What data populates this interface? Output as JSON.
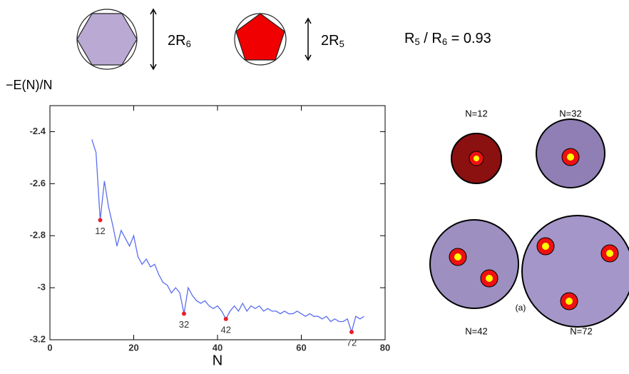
{
  "chart_data": {
    "type": "line",
    "y_label": "−E(N)/N",
    "x_label": "N",
    "xlim": [
      0,
      80
    ],
    "xticks": [
      0,
      20,
      40,
      60,
      80
    ],
    "ylim": [
      -3.2,
      -2.3
    ],
    "yticks": [
      -3.2,
      -3,
      -2.8,
      -2.6,
      -2.4
    ],
    "series": [
      {
        "color": "#5a6ef0",
        "x": [
          10,
          11,
          12,
          13,
          14,
          15,
          16,
          17,
          18,
          19,
          20,
          21,
          22,
          23,
          24,
          25,
          26,
          27,
          28,
          29,
          30,
          31,
          32,
          33,
          34,
          35,
          36,
          37,
          38,
          39,
          40,
          41,
          42,
          43,
          44,
          45,
          46,
          47,
          48,
          49,
          50,
          51,
          52,
          53,
          54,
          55,
          56,
          57,
          58,
          59,
          60,
          61,
          62,
          63,
          64,
          65,
          66,
          67,
          68,
          69,
          70,
          71,
          72,
          73,
          74,
          75
        ],
        "values": [
          -2.43,
          -2.48,
          -2.74,
          -2.59,
          -2.69,
          -2.76,
          -2.84,
          -2.78,
          -2.81,
          -2.84,
          -2.8,
          -2.88,
          -2.91,
          -2.89,
          -2.92,
          -2.91,
          -2.95,
          -2.98,
          -2.99,
          -3.02,
          -3.0,
          -3.02,
          -3.1,
          -3.0,
          -3.03,
          -3.05,
          -3.06,
          -3.05,
          -3.07,
          -3.08,
          -3.07,
          -3.09,
          -3.12,
          -3.09,
          -3.07,
          -3.09,
          -3.06,
          -3.09,
          -3.07,
          -3.08,
          -3.07,
          -3.09,
          -3.08,
          -3.09,
          -3.09,
          -3.1,
          -3.09,
          -3.1,
          -3.1,
          -3.09,
          -3.1,
          -3.11,
          -3.1,
          -3.11,
          -3.11,
          -3.12,
          -3.11,
          -3.13,
          -3.12,
          -3.13,
          -3.13,
          -3.12,
          -3.17,
          -3.11,
          -3.12,
          -3.11
        ]
      },
      {
        "type": "scatter",
        "color": "#e8202a",
        "x": [
          12,
          32,
          42,
          72
        ],
        "values": [
          -2.74,
          -3.1,
          -3.12,
          -3.17
        ]
      }
    ]
  },
  "header": {
    "hexagon_label": {
      "text": "2R",
      "sub": "6"
    },
    "pentagon_label": {
      "text": "2R",
      "sub": "5"
    },
    "ratio": [
      {
        "text": "R",
        "sub": "5"
      },
      {
        "text": " / R",
        "sub": "6"
      },
      {
        "text": " = 0.93"
      }
    ]
  },
  "clusters": {
    "labels": [
      "N=12",
      "N=32",
      "N=42",
      "N=72"
    ],
    "panel": "(a)"
  }
}
